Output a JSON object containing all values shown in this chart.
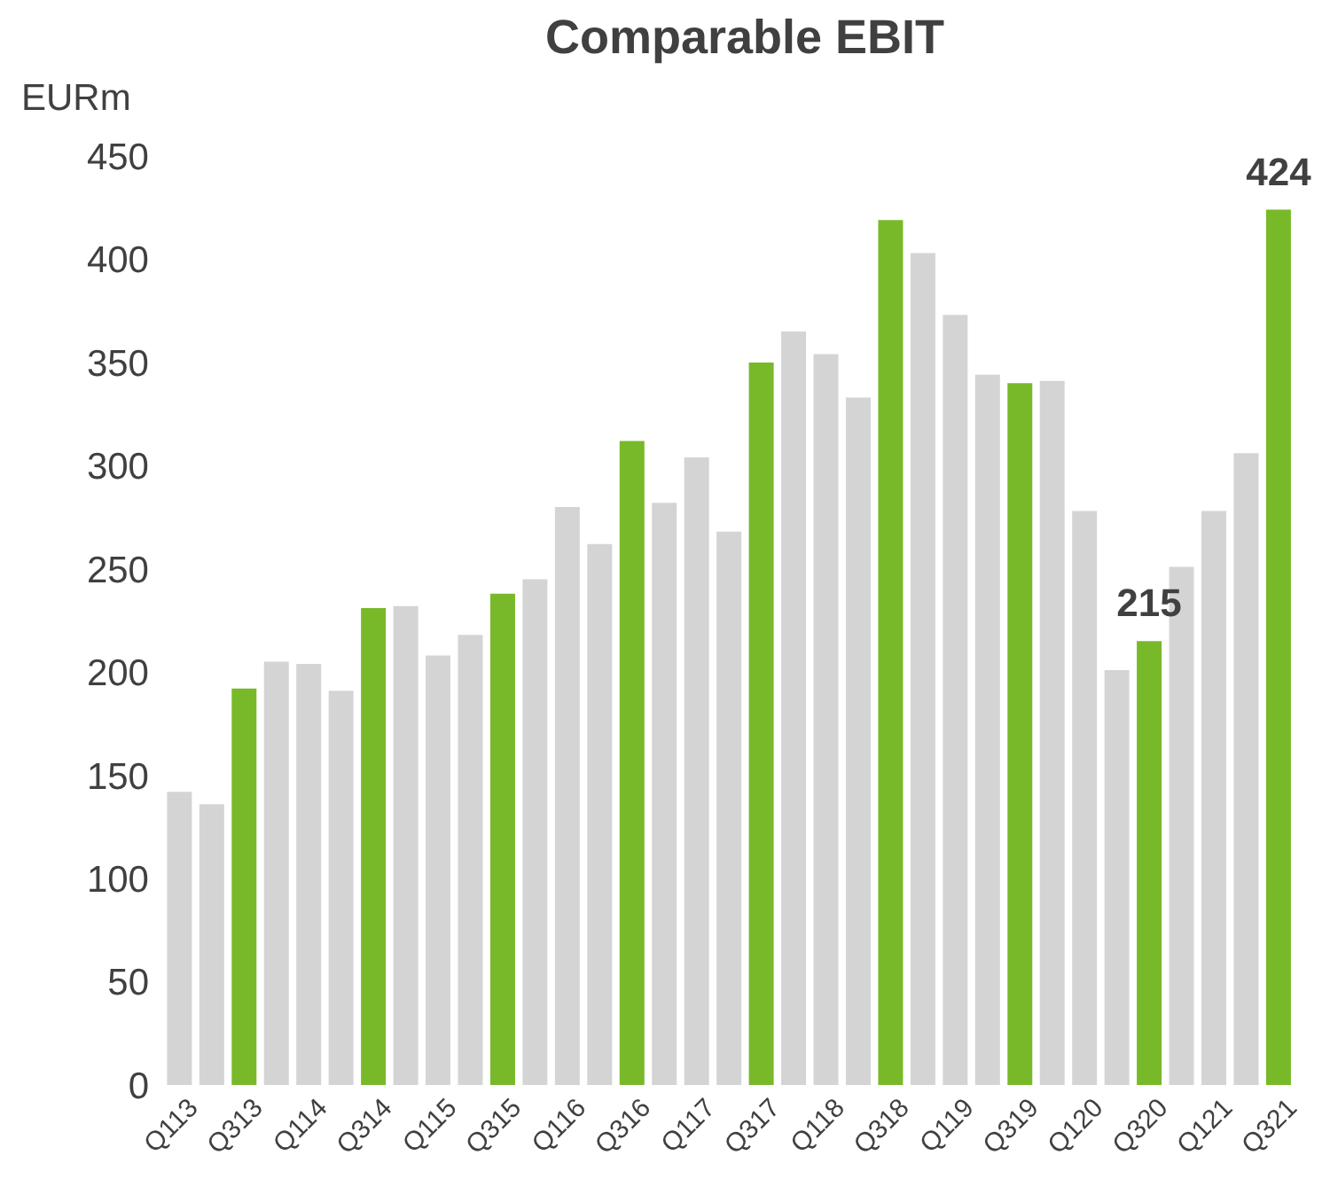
{
  "chart_data": {
    "type": "bar",
    "title": "Comparable EBIT",
    "ylabel": "EURm",
    "categories": [
      "Q113",
      null,
      "Q313",
      null,
      "Q114",
      null,
      "Q314",
      null,
      "Q115",
      null,
      "Q315",
      null,
      "Q116",
      null,
      "Q316",
      null,
      "Q117",
      null,
      "Q317",
      null,
      "Q118",
      null,
      "Q318",
      null,
      "Q119",
      null,
      "Q319",
      null,
      "Q120",
      null,
      "Q320",
      null,
      "Q121",
      null,
      "Q321"
    ],
    "values": [
      142,
      136,
      192,
      205,
      204,
      191,
      231,
      232,
      208,
      218,
      238,
      245,
      280,
      262,
      312,
      282,
      304,
      268,
      350,
      365,
      354,
      333,
      419,
      403,
      373,
      344,
      340,
      341,
      278,
      201,
      215,
      251,
      278,
      306,
      424
    ],
    "colors": [
      "#d4d4d4",
      "#d4d4d4",
      "#78b92a",
      "#d4d4d4",
      "#d4d4d4",
      "#d4d4d4",
      "#78b92a",
      "#d4d4d4",
      "#d4d4d4",
      "#d4d4d4",
      "#78b92a",
      "#d4d4d4",
      "#d4d4d4",
      "#d4d4d4",
      "#78b92a",
      "#d4d4d4",
      "#d4d4d4",
      "#d4d4d4",
      "#78b92a",
      "#d4d4d4",
      "#d4d4d4",
      "#d4d4d4",
      "#78b92a",
      "#d4d4d4",
      "#d4d4d4",
      "#d4d4d4",
      "#78b92a",
      "#d4d4d4",
      "#d4d4d4",
      "#d4d4d4",
      "#78b92a",
      "#d4d4d4",
      "#d4d4d4",
      "#d4d4d4",
      "#78b92a"
    ],
    "value_labels": [
      null,
      null,
      null,
      null,
      null,
      null,
      null,
      null,
      null,
      null,
      null,
      null,
      null,
      null,
      null,
      null,
      null,
      null,
      null,
      null,
      null,
      null,
      null,
      null,
      null,
      null,
      null,
      null,
      null,
      null,
      "215",
      null,
      null,
      null,
      "424"
    ],
    "ylim": [
      0,
      450
    ],
    "yticks": [
      0,
      50,
      100,
      150,
      200,
      250,
      300,
      350,
      400,
      450
    ]
  }
}
